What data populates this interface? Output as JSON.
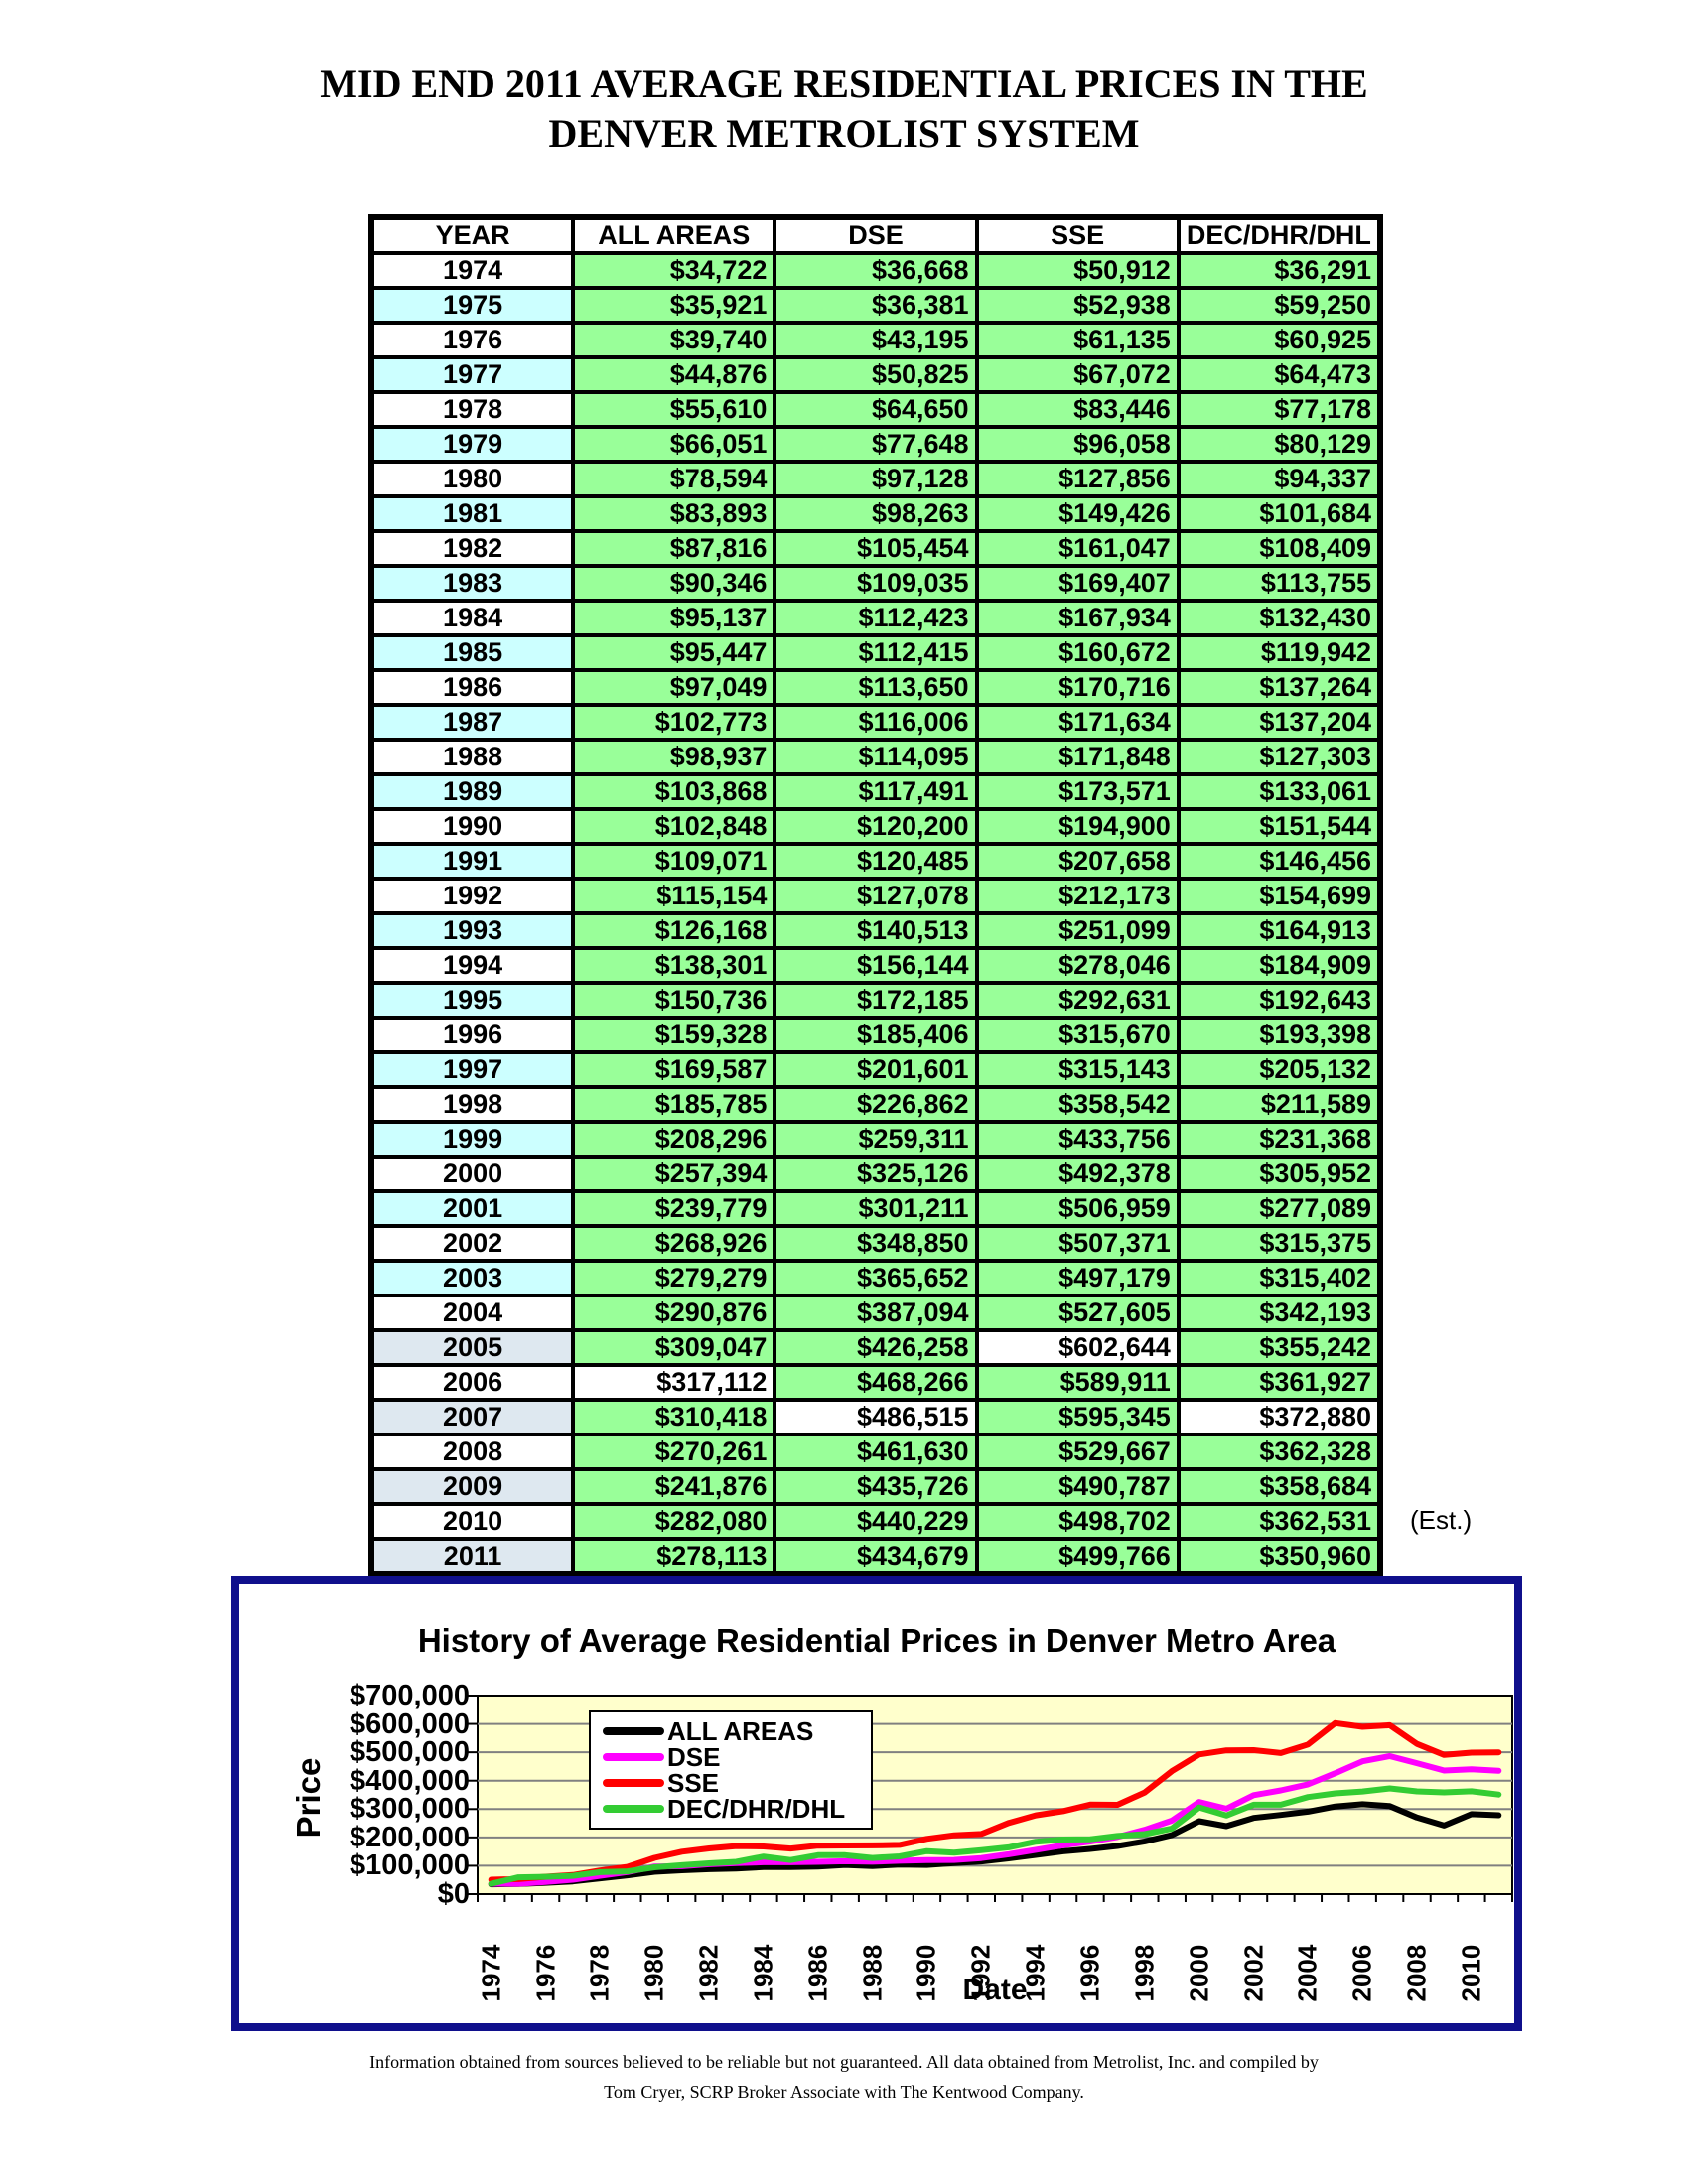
{
  "page": {
    "title_line1": "MID END 2011 AVERAGE RESIDENTIAL PRICES IN THE",
    "title_line2": "DENVER METROLIST SYSTEM",
    "est_note": "(Est.)",
    "footer_line1": "Information obtained from sources believed to be reliable but not guaranteed.  All data obtained from Metrolist, Inc. and compiled by",
    "footer_line2": "Tom Cryer, SCRP Broker Associate with The Kentwood Company."
  },
  "colors": {
    "cell_green": "#99FF99",
    "cell_cyan": "#CCFFFF",
    "cell_slate": "#DEE8F0",
    "cell_white": "#FFFFFF",
    "chart_border": "#10108C",
    "plot_bg": "#FFFFCC",
    "grid": "#808080"
  },
  "table": {
    "headers": [
      "YEAR",
      "ALL AREAS",
      "DSE",
      "SSE",
      "DEC/DHR/DHL"
    ],
    "rows": [
      {
        "year": "1974",
        "year_bg": "cell_white",
        "values": [
          "$34,722",
          "$36,668",
          "$50,912",
          "$36,291"
        ],
        "white_cells": []
      },
      {
        "year": "1975",
        "year_bg": "cell_cyan",
        "values": [
          "$35,921",
          "$36,381",
          "$52,938",
          "$59,250"
        ],
        "white_cells": []
      },
      {
        "year": "1976",
        "year_bg": "cell_white",
        "values": [
          "$39,740",
          "$43,195",
          "$61,135",
          "$60,925"
        ],
        "white_cells": []
      },
      {
        "year": "1977",
        "year_bg": "cell_cyan",
        "values": [
          "$44,876",
          "$50,825",
          "$67,072",
          "$64,473"
        ],
        "white_cells": []
      },
      {
        "year": "1978",
        "year_bg": "cell_white",
        "values": [
          "$55,610",
          "$64,650",
          "$83,446",
          "$77,178"
        ],
        "white_cells": []
      },
      {
        "year": "1979",
        "year_bg": "cell_cyan",
        "values": [
          "$66,051",
          "$77,648",
          "$96,058",
          "$80,129"
        ],
        "white_cells": []
      },
      {
        "year": "1980",
        "year_bg": "cell_white",
        "values": [
          "$78,594",
          "$97,128",
          "$127,856",
          "$94,337"
        ],
        "white_cells": []
      },
      {
        "year": "1981",
        "year_bg": "cell_cyan",
        "values": [
          "$83,893",
          "$98,263",
          "$149,426",
          "$101,684"
        ],
        "white_cells": []
      },
      {
        "year": "1982",
        "year_bg": "cell_white",
        "values": [
          "$87,816",
          "$105,454",
          "$161,047",
          "$108,409"
        ],
        "white_cells": []
      },
      {
        "year": "1983",
        "year_bg": "cell_cyan",
        "values": [
          "$90,346",
          "$109,035",
          "$169,407",
          "$113,755"
        ],
        "white_cells": []
      },
      {
        "year": "1984",
        "year_bg": "cell_white",
        "values": [
          "$95,137",
          "$112,423",
          "$167,934",
          "$132,430"
        ],
        "white_cells": []
      },
      {
        "year": "1985",
        "year_bg": "cell_cyan",
        "values": [
          "$95,447",
          "$112,415",
          "$160,672",
          "$119,942"
        ],
        "white_cells": []
      },
      {
        "year": "1986",
        "year_bg": "cell_white",
        "values": [
          "$97,049",
          "$113,650",
          "$170,716",
          "$137,264"
        ],
        "white_cells": []
      },
      {
        "year": "1987",
        "year_bg": "cell_cyan",
        "values": [
          "$102,773",
          "$116,006",
          "$171,634",
          "$137,204"
        ],
        "white_cells": []
      },
      {
        "year": "1988",
        "year_bg": "cell_white",
        "values": [
          "$98,937",
          "$114,095",
          "$171,848",
          "$127,303"
        ],
        "white_cells": []
      },
      {
        "year": "1989",
        "year_bg": "cell_cyan",
        "values": [
          "$103,868",
          "$117,491",
          "$173,571",
          "$133,061"
        ],
        "white_cells": []
      },
      {
        "year": "1990",
        "year_bg": "cell_white",
        "values": [
          "$102,848",
          "$120,200",
          "$194,900",
          "$151,544"
        ],
        "white_cells": []
      },
      {
        "year": "1991",
        "year_bg": "cell_cyan",
        "values": [
          "$109,071",
          "$120,485",
          "$207,658",
          "$146,456"
        ],
        "white_cells": []
      },
      {
        "year": "1992",
        "year_bg": "cell_white",
        "values": [
          "$115,154",
          "$127,078",
          "$212,173",
          "$154,699"
        ],
        "white_cells": []
      },
      {
        "year": "1993",
        "year_bg": "cell_cyan",
        "values": [
          "$126,168",
          "$140,513",
          "$251,099",
          "$164,913"
        ],
        "white_cells": []
      },
      {
        "year": "1994",
        "year_bg": "cell_white",
        "values": [
          "$138,301",
          "$156,144",
          "$278,046",
          "$184,909"
        ],
        "white_cells": []
      },
      {
        "year": "1995",
        "year_bg": "cell_cyan",
        "values": [
          "$150,736",
          "$172,185",
          "$292,631",
          "$192,643"
        ],
        "white_cells": []
      },
      {
        "year": "1996",
        "year_bg": "cell_white",
        "values": [
          "$159,328",
          "$185,406",
          "$315,670",
          "$193,398"
        ],
        "white_cells": []
      },
      {
        "year": "1997",
        "year_bg": "cell_cyan",
        "values": [
          "$169,587",
          "$201,601",
          "$315,143",
          "$205,132"
        ],
        "white_cells": []
      },
      {
        "year": "1998",
        "year_bg": "cell_white",
        "values": [
          "$185,785",
          "$226,862",
          "$358,542",
          "$211,589"
        ],
        "white_cells": []
      },
      {
        "year": "1999",
        "year_bg": "cell_cyan",
        "values": [
          "$208,296",
          "$259,311",
          "$433,756",
          "$231,368"
        ],
        "white_cells": []
      },
      {
        "year": "2000",
        "year_bg": "cell_white",
        "values": [
          "$257,394",
          "$325,126",
          "$492,378",
          "$305,952"
        ],
        "white_cells": []
      },
      {
        "year": "2001",
        "year_bg": "cell_cyan",
        "values": [
          "$239,779",
          "$301,211",
          "$506,959",
          "$277,089"
        ],
        "white_cells": []
      },
      {
        "year": "2002",
        "year_bg": "cell_white",
        "values": [
          "$268,926",
          "$348,850",
          "$507,371",
          "$315,375"
        ],
        "white_cells": []
      },
      {
        "year": "2003",
        "year_bg": "cell_cyan",
        "values": [
          "$279,279",
          "$365,652",
          "$497,179",
          "$315,402"
        ],
        "white_cells": []
      },
      {
        "year": "2004",
        "year_bg": "cell_white",
        "values": [
          "$290,876",
          "$387,094",
          "$527,605",
          "$342,193"
        ],
        "white_cells": []
      },
      {
        "year": "2005",
        "year_bg": "cell_slate",
        "values": [
          "$309,047",
          "$426,258",
          "$602,644",
          "$355,242"
        ],
        "white_cells": [
          2
        ]
      },
      {
        "year": "2006",
        "year_bg": "cell_white",
        "values": [
          "$317,112",
          "$468,266",
          "$589,911",
          "$361,927"
        ],
        "white_cells": [
          0
        ]
      },
      {
        "year": "2007",
        "year_bg": "cell_slate",
        "values": [
          "$310,418",
          "$486,515",
          "$595,345",
          "$372,880"
        ],
        "white_cells": [
          1,
          3
        ]
      },
      {
        "year": "2008",
        "year_bg": "cell_white",
        "values": [
          "$270,261",
          "$461,630",
          "$529,667",
          "$362,328"
        ],
        "white_cells": []
      },
      {
        "year": "2009",
        "year_bg": "cell_slate",
        "values": [
          "$241,876",
          "$435,726",
          "$490,787",
          "$358,684"
        ],
        "white_cells": []
      },
      {
        "year": "2010",
        "year_bg": "cell_white",
        "values": [
          "$282,080",
          "$440,229",
          "$498,702",
          "$362,531"
        ],
        "white_cells": []
      },
      {
        "year": "2011",
        "year_bg": "cell_slate",
        "values": [
          "$278,113",
          "$434,679",
          "$499,766",
          "$350,960"
        ],
        "white_cells": []
      }
    ]
  },
  "chart_data": {
    "type": "line",
    "title": "History of Average Residential Prices in Denver Metro Area",
    "xlabel": "Date",
    "ylabel": "Price",
    "x": [
      1974,
      1975,
      1976,
      1977,
      1978,
      1979,
      1980,
      1981,
      1982,
      1983,
      1984,
      1985,
      1986,
      1987,
      1988,
      1989,
      1990,
      1991,
      1992,
      1993,
      1994,
      1995,
      1996,
      1997,
      1998,
      1999,
      2000,
      2001,
      2002,
      2003,
      2004,
      2005,
      2006,
      2007,
      2008,
      2009,
      2010,
      2011
    ],
    "x_tick_labels": [
      "1974",
      "1976",
      "1978",
      "1980",
      "1982",
      "1984",
      "1986",
      "1988",
      "1990",
      "1992",
      "1994",
      "1996",
      "1998",
      "2000",
      "2002",
      "2004",
      "2006",
      "2008",
      "2010"
    ],
    "ylim": [
      0,
      700000
    ],
    "y_ticks": [
      0,
      100000,
      200000,
      300000,
      400000,
      500000,
      600000,
      700000
    ],
    "y_tick_labels": [
      "$0",
      "$100,000",
      "$200,000",
      "$300,000",
      "$400,000",
      "$500,000",
      "$600,000",
      "$700,000"
    ],
    "grid": "horizontal",
    "legend_position": "upper-left-inside",
    "series": [
      {
        "name": "ALL AREAS",
        "color": "#000000",
        "values": [
          34722,
          35921,
          39740,
          44876,
          55610,
          66051,
          78594,
          83893,
          87816,
          90346,
          95137,
          95447,
          97049,
          102773,
          98937,
          103868,
          102848,
          109071,
          115154,
          126168,
          138301,
          150736,
          159328,
          169587,
          185785,
          208296,
          257394,
          239779,
          268926,
          279279,
          290876,
          309047,
          317112,
          310418,
          270261,
          241876,
          282080,
          278113
        ]
      },
      {
        "name": "DSE",
        "color": "#FF00FF",
        "values": [
          36668,
          36381,
          43195,
          50825,
          64650,
          77648,
          97128,
          98263,
          105454,
          109035,
          112423,
          112415,
          113650,
          116006,
          114095,
          117491,
          120200,
          120485,
          127078,
          140513,
          156144,
          172185,
          185406,
          201601,
          226862,
          259311,
          325126,
          301211,
          348850,
          365652,
          387094,
          426258,
          468266,
          486515,
          461630,
          435726,
          440229,
          434679
        ]
      },
      {
        "name": "SSE",
        "color": "#FF0000",
        "values": [
          50912,
          52938,
          61135,
          67072,
          83446,
          96058,
          127856,
          149426,
          161047,
          169407,
          167934,
          160672,
          170716,
          171634,
          171848,
          173571,
          194900,
          207658,
          212173,
          251099,
          278046,
          292631,
          315670,
          315143,
          358542,
          433756,
          492378,
          506959,
          507371,
          497179,
          527605,
          602644,
          589911,
          595345,
          529667,
          490787,
          498702,
          499766
        ]
      },
      {
        "name": "DEC/DHR/DHL",
        "color": "#33CC33",
        "values": [
          36291,
          59250,
          60925,
          64473,
          77178,
          80129,
          94337,
          101684,
          108409,
          113755,
          132430,
          119942,
          137264,
          137204,
          127303,
          133061,
          151544,
          146456,
          154699,
          164913,
          184909,
          192643,
          193398,
          205132,
          211589,
          231368,
          305952,
          277089,
          315375,
          315402,
          342193,
          355242,
          361927,
          372880,
          362328,
          358684,
          362531,
          350960
        ]
      }
    ]
  }
}
